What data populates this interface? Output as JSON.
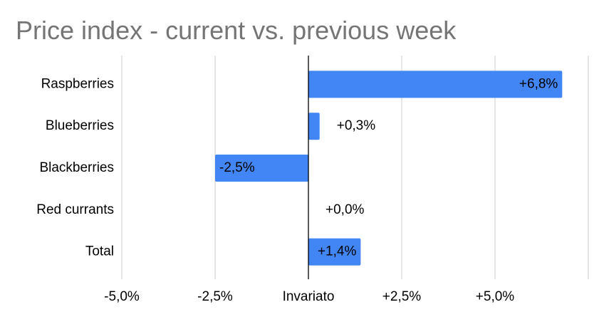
{
  "chart_data": {
    "type": "bar",
    "orientation": "horizontal",
    "title": "Price index - current vs. previous week",
    "categories": [
      "Raspberries",
      "Blueberries",
      "Blackberries",
      "Red currants",
      "Total"
    ],
    "values": [
      6.8,
      0.3,
      -2.5,
      0,
      1.4
    ],
    "value_labels": [
      "+6,8%",
      "+0,3%",
      "-2,5%",
      "+0,0%",
      "+1,4%"
    ],
    "color": "#4285f4",
    "xlim": [
      -5,
      7.5
    ],
    "xticks": [
      {
        "value": -5,
        "label": "-5,0%"
      },
      {
        "value": -2.5,
        "label": "-2,5%"
      },
      {
        "value": 0,
        "label": "Invariato"
      },
      {
        "value": 2.5,
        "label": "+2,5%"
      },
      {
        "value": 5,
        "label": "+5,0%"
      }
    ],
    "grid": true
  }
}
